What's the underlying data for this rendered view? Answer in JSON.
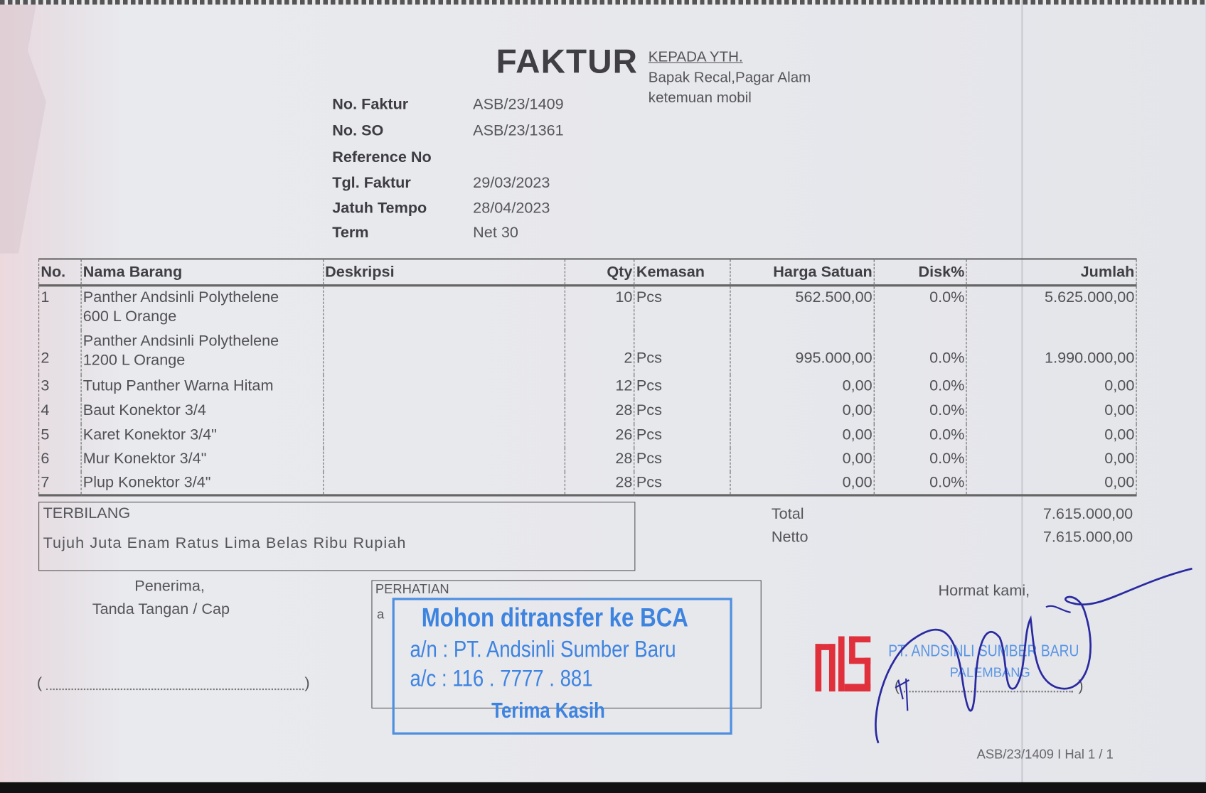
{
  "document": {
    "title": "FAKTUR",
    "recipient": {
      "heading": "KEPADA YTH.",
      "name": "Bapak Recal,Pagar Alam",
      "note": "ketemuan mobil"
    },
    "fields": [
      {
        "label": "No. Faktur",
        "value": "ASB/23/1409"
      },
      {
        "label": "No. SO",
        "value": "ASB/23/1361"
      },
      {
        "label": "Reference No",
        "value": ""
      },
      {
        "label": "Tgl. Faktur",
        "value": "29/03/2023"
      },
      {
        "label": "Jatuh Tempo",
        "value": "28/04/2023"
      },
      {
        "label": "Term",
        "value": "Net 30"
      }
    ],
    "table": {
      "headers": [
        "No.",
        "Nama Barang",
        "Deskripsi",
        "Qty",
        "Kemasan",
        "Harga Satuan",
        "Disk%",
        "Jumlah"
      ],
      "rows": [
        {
          "no": "1",
          "name": "Panther Andsinli Polythelene",
          "name2": "600 L Orange",
          "desc": "",
          "qty": "10",
          "unit": "Pcs",
          "price": "562.500,00",
          "disc": "0.0%",
          "total": "5.625.000,00"
        },
        {
          "no": "2",
          "name": "Panther Andsinli Polythelene",
          "name2": "1200 L Orange",
          "desc": "",
          "qty": "2",
          "unit": "Pcs",
          "price": "995.000,00",
          "disc": "0.0%",
          "total": "1.990.000,00"
        },
        {
          "no": "3",
          "name": "Tutup Panther Warna Hitam",
          "name2": "",
          "desc": "",
          "qty": "12",
          "unit": "Pcs",
          "price": "0,00",
          "disc": "0.0%",
          "total": "0,00"
        },
        {
          "no": "4",
          "name": "Baut Konektor 3/4",
          "name2": "",
          "desc": "",
          "qty": "28",
          "unit": "Pcs",
          "price": "0,00",
          "disc": "0.0%",
          "total": "0,00"
        },
        {
          "no": "5",
          "name": "Karet Konektor 3/4\"",
          "name2": "",
          "desc": "",
          "qty": "26",
          "unit": "Pcs",
          "price": "0,00",
          "disc": "0.0%",
          "total": "0,00"
        },
        {
          "no": "6",
          "name": "Mur Konektor 3/4\"",
          "name2": "",
          "desc": "",
          "qty": "28",
          "unit": "Pcs",
          "price": "0,00",
          "disc": "0.0%",
          "total": "0,00"
        },
        {
          "no": "7",
          "name": "Plup Konektor 3/4\"",
          "name2": "",
          "desc": "",
          "qty": "28",
          "unit": "Pcs",
          "price": "0,00",
          "disc": "0.0%",
          "total": "0,00"
        }
      ]
    },
    "terbilang": {
      "label": "TERBILANG",
      "text": "Tujuh Juta Enam Ratus Lima Belas Ribu Rupiah"
    },
    "totals": {
      "total_label": "Total",
      "total": "7.615.000,00",
      "netto_label": "Netto",
      "netto": "7.615.000,00"
    },
    "receiver": {
      "line1": "Penerima,",
      "line2": "Tanda Tangan / Cap",
      "sign_open": "(",
      "sign_close": ")"
    },
    "notice": {
      "label": "PERHATIAN",
      "text": "a"
    },
    "bank_stamp": {
      "line1": "Mohon ditransfer ke BCA",
      "line2": "a/n : PT. Andsinli Sumber Baru",
      "line3": "a/c : 116 . 7777 . 881",
      "line4": "Terima Kasih"
    },
    "sender": {
      "greeting": "Hormat kami,",
      "company_stamp": "PT. ANDSINLI SUMBER BARU",
      "company_city": "PALEMBANG",
      "logo_text": "ASB",
      "sign_open": "(",
      "sign_close": ")"
    },
    "footer": "ASB/23/1409 I Hal 1 / 1",
    "colors": {
      "stamp_blue": "#3d83e0",
      "logo_red": "#e0303c",
      "ink_blue": "#2a2aa0",
      "print_gray": "#4a4a4e"
    }
  }
}
